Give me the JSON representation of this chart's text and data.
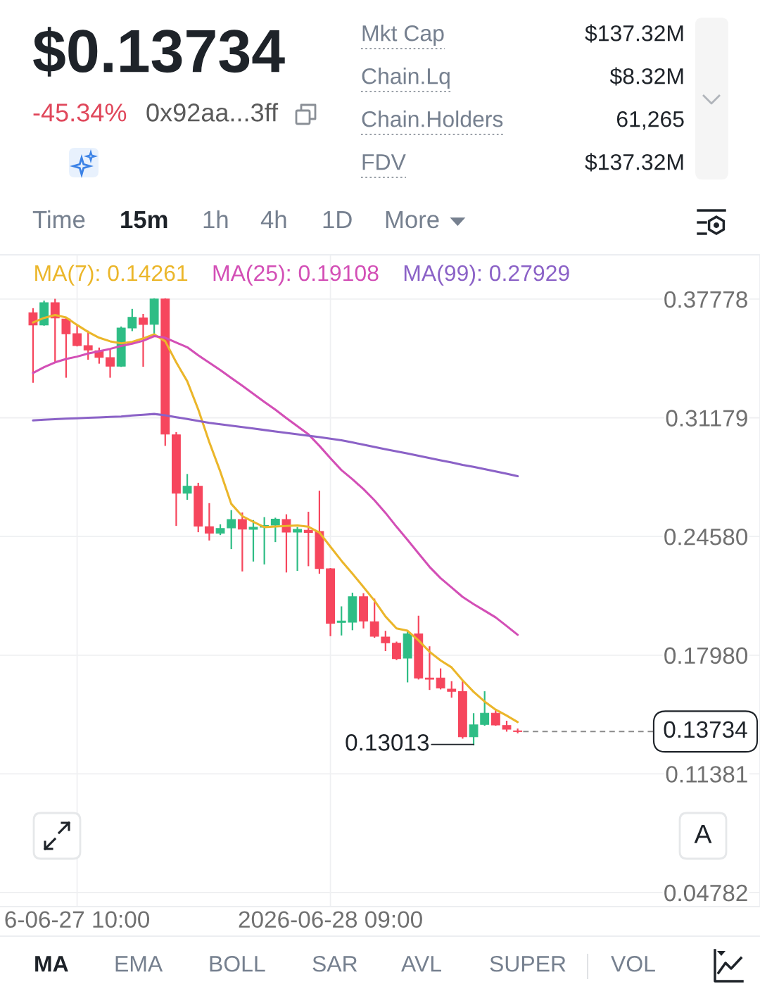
{
  "chart_data": {
    "type": "candlestick",
    "title": "$0.13734",
    "annotations": [
      "-45.34%",
      "0x92aa...3ff",
      "Mkt Cap",
      "$137.32M",
      "Chain.Lq",
      "$8.32M",
      "Chain.Holders",
      "61,265",
      "FDV",
      "$137.32M",
      "Time",
      "15m",
      "1h",
      "4h",
      "1D",
      "More",
      "A",
      "MA",
      "EMA",
      "BOLL",
      "SAR",
      "AVL",
      "SUPER",
      "VOL",
      {
        "text": "0.13013",
        "x": "2026-06-28T22:00",
        "y": 0.13013
      }
    ],
    "x": [
      "2026-06-27T06:00",
      "2026-06-27T07:00",
      "2026-06-27T08:00",
      "2026-06-27T09:00",
      "2026-06-27T10:00",
      "2026-06-27T11:00",
      "2026-06-27T12:00",
      "2026-06-27T13:00",
      "2026-06-27T14:00",
      "2026-06-27T15:00",
      "2026-06-27T16:00",
      "2026-06-27T17:00",
      "2026-06-27T18:00",
      "2026-06-27T19:00",
      "2026-06-27T20:00",
      "2026-06-27T21:00",
      "2026-06-27T22:00",
      "2026-06-27T23:00",
      "2026-06-28T00:00",
      "2026-06-28T01:00",
      "2026-06-28T02:00",
      "2026-06-28T03:00",
      "2026-06-28T04:00",
      "2026-06-28T05:00",
      "2026-06-28T06:00",
      "2026-06-28T07:00",
      "2026-06-28T08:00",
      "2026-06-28T09:00",
      "2026-06-28T10:00",
      "2026-06-28T11:00",
      "2026-06-28T12:00",
      "2026-06-28T13:00",
      "2026-06-28T14:00",
      "2026-06-28T15:00",
      "2026-06-28T16:00",
      "2026-06-28T17:00",
      "2026-06-28T18:00",
      "2026-06-28T19:00",
      "2026-06-28T20:00",
      "2026-06-28T21:00",
      "2026-06-28T22:00",
      "2026-06-28T23:00",
      "2026-06-29T00:00",
      "2026-06-29T01:00",
      "2026-06-29T02:00"
    ],
    "ohlc": [
      [
        0.3702,
        0.3723,
        0.3317,
        0.3634
      ],
      [
        0.3634,
        0.3765,
        0.3634,
        0.3758
      ],
      [
        0.3758,
        0.3775,
        0.3432,
        0.3673
      ],
      [
        0.3667,
        0.3667,
        0.3345,
        0.3585
      ],
      [
        0.3585,
        0.363,
        0.3519,
        0.3519
      ],
      [
        0.3519,
        0.3598,
        0.3445,
        0.3495
      ],
      [
        0.3491,
        0.3504,
        0.3423,
        0.3454
      ],
      [
        0.3452,
        0.3497,
        0.3345,
        0.3405
      ],
      [
        0.3405,
        0.3621,
        0.3405,
        0.3617
      ],
      [
        0.3617,
        0.3719,
        0.3604,
        0.3676
      ],
      [
        0.3673,
        0.3691,
        0.3406,
        0.3637
      ],
      [
        0.3638,
        0.3778,
        0.3582,
        0.3778
      ],
      [
        0.3778,
        0.3778,
        0.2966,
        0.3027
      ],
      [
        0.3023,
        0.3034,
        0.2521,
        0.2698
      ],
      [
        0.2698,
        0.2801,
        0.2666,
        0.2737
      ],
      [
        0.2737,
        0.2752,
        0.2486,
        0.2516
      ],
      [
        0.2512,
        0.2639,
        0.244,
        0.2476
      ],
      [
        0.2476,
        0.2521,
        0.247,
        0.2502
      ],
      [
        0.2506,
        0.26,
        0.2392,
        0.2552
      ],
      [
        0.2552,
        0.2587,
        0.2268,
        0.2499
      ],
      [
        0.2498,
        0.2545,
        0.2323,
        0.2509
      ],
      [
        0.251,
        0.2561,
        0.2307,
        0.2519
      ],
      [
        0.2521,
        0.2558,
        0.2431,
        0.2554
      ],
      [
        0.2552,
        0.2577,
        0.2262,
        0.2482
      ],
      [
        0.2482,
        0.2506,
        0.2271,
        0.2497
      ],
      [
        0.2493,
        0.2591,
        0.2297,
        0.248
      ],
      [
        0.2486,
        0.2708,
        0.2255,
        0.228
      ],
      [
        0.2278,
        0.2278,
        0.1908,
        0.1975
      ],
      [
        0.198,
        0.2065,
        0.1912,
        0.1988
      ],
      [
        0.1981,
        0.2141,
        0.1941,
        0.2123
      ],
      [
        0.2123,
        0.2138,
        0.1951,
        0.1988
      ],
      [
        0.1984,
        0.2108,
        0.1899,
        0.1903
      ],
      [
        0.1899,
        0.1929,
        0.1825,
        0.1867
      ],
      [
        0.1864,
        0.1869,
        0.1775,
        0.1779
      ],
      [
        0.1782,
        0.1925,
        0.1651,
        0.1916
      ],
      [
        0.1916,
        0.2013,
        0.1667,
        0.1671
      ],
      [
        0.1671,
        0.1843,
        0.1609,
        0.1664
      ],
      [
        0.1671,
        0.172,
        0.1612,
        0.1615
      ],
      [
        0.1609,
        0.1649,
        0.1566,
        0.1597
      ],
      [
        0.1595,
        0.1655,
        0.1338,
        0.1344
      ],
      [
        0.1344,
        0.1471,
        0.13013,
        0.141
      ],
      [
        0.1413,
        0.1593,
        0.141,
        0.1475
      ],
      [
        0.1475,
        0.1495,
        0.141,
        0.141
      ],
      [
        0.1407,
        0.1429,
        0.1377,
        0.1386
      ],
      [
        0.1377,
        0.1386,
        0.1368,
        0.13734
      ]
    ],
    "colors": [
      "#f6465d",
      "#2ebd85",
      "#f6465d",
      "#f6465d",
      "#f6465d",
      "#f6465d",
      "#f6465d",
      "#f6465d",
      "#2ebd85",
      "#2ebd85",
      "#f6465d",
      "#2ebd85",
      "#f6465d",
      "#f6465d",
      "#2ebd85",
      "#f6465d",
      "#f6465d",
      "#2ebd85",
      "#2ebd85",
      "#f6465d",
      "#2ebd85",
      "#2ebd85",
      "#2ebd85",
      "#f6465d",
      "#2ebd85",
      "#f6465d",
      "#f6465d",
      "#f6465d",
      "#2ebd85",
      "#2ebd85",
      "#f6465d",
      "#f6465d",
      "#f6465d",
      "#f6465d",
      "#2ebd85",
      "#f6465d",
      "#f6465d",
      "#f6465d",
      "#f6465d",
      "#f6465d",
      "#2ebd85",
      "#2ebd85",
      "#f6465d",
      "#f6465d",
      "#f6465d"
    ],
    "series": [
      {
        "name": "MA(7): 0.14261",
        "type": "line",
        "color": "#ebb62a",
        "values": [
          0.3648,
          0.3673,
          0.3689,
          0.3676,
          0.3634,
          0.3595,
          0.3563,
          0.3543,
          0.3532,
          0.354,
          0.3559,
          0.3582,
          0.3543,
          0.3426,
          0.3321,
          0.3164,
          0.2983,
          0.2819,
          0.2639,
          0.2571,
          0.2539,
          0.251,
          0.2513,
          0.2516,
          0.2519,
          0.2512,
          0.248,
          0.2401,
          0.2323,
          0.2251,
          0.2177,
          0.2101,
          0.2013,
          0.1947,
          0.1934,
          0.188,
          0.1817,
          0.1769,
          0.173,
          0.1658,
          0.1594,
          0.154,
          0.1495,
          0.1462,
          0.1426
        ]
      },
      {
        "name": "MA(25): 0.19108",
        "type": "line",
        "color": "#d34fb6",
        "values": [
          0.3367,
          0.3399,
          0.3426,
          0.3445,
          0.3458,
          0.3475,
          0.3488,
          0.3501,
          0.3517,
          0.353,
          0.3546,
          0.3572,
          0.3563,
          0.3536,
          0.351,
          0.3465,
          0.3424,
          0.3383,
          0.3339,
          0.3296,
          0.3251,
          0.3206,
          0.3163,
          0.3116,
          0.3071,
          0.3026,
          0.2962,
          0.2893,
          0.2827,
          0.2776,
          0.2721,
          0.2659,
          0.2589,
          0.2512,
          0.2439,
          0.2364,
          0.2289,
          0.2226,
          0.2174,
          0.2122,
          0.2082,
          0.2045,
          0.2008,
          0.196,
          0.1911
        ]
      },
      {
        "name": "MA(99): 0.27929",
        "type": "line",
        "color": "#8b62c7",
        "values": [
          0.3103,
          0.3107,
          0.311,
          0.3113,
          0.3115,
          0.3118,
          0.312,
          0.3123,
          0.3125,
          0.3131,
          0.3135,
          0.3139,
          0.3132,
          0.3121,
          0.3111,
          0.31,
          0.309,
          0.3082,
          0.3074,
          0.3066,
          0.3058,
          0.305,
          0.3042,
          0.3034,
          0.3026,
          0.3018,
          0.301,
          0.3002,
          0.2993,
          0.2981,
          0.2968,
          0.2956,
          0.2943,
          0.2931,
          0.2919,
          0.2907,
          0.2894,
          0.2881,
          0.2869,
          0.2856,
          0.2845,
          0.2832,
          0.282,
          0.2807,
          0.2793
        ]
      }
    ],
    "xlim": [
      "2026-06-27T03:00",
      "2026-06-30T00:00"
    ],
    "xticks": [
      {
        "value": "2026-06-27T10:00",
        "label": "6-06-27 10:00"
      },
      {
        "value": "2026-06-28T09:00",
        "label": "2026-06-28 09:00"
      }
    ],
    "ylim": [
      0.04,
      0.4024
    ],
    "yticks": [
      0.37778,
      0.31179,
      {
        "value": 0.2458,
        "label": "0.24580"
      },
      {
        "value": 0.1798,
        "label": "0.17980"
      },
      0.11381,
      0.04782
    ],
    "ref_lines": [
      {
        "axis": "y",
        "value": 0.13734,
        "label": "0.13734",
        "line_style": "dashed",
        "color": "#8a8a8a"
      }
    ],
    "grid": true,
    "legend": "top left"
  }
}
